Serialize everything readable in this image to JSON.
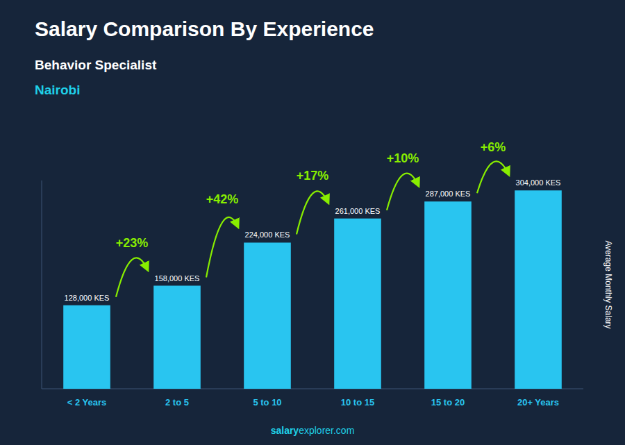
{
  "chart_data": {
    "type": "bar",
    "title": "Salary Comparison By Experience",
    "subtitle": "Behavior Specialist",
    "city": "Nairobi",
    "y_label": "Average Monthly Salary",
    "footer": [
      "salary",
      "explorer.com"
    ],
    "categories": [
      "< 2 Years",
      "2 to 5",
      "5 to 10",
      "10 to 15",
      "15 to 20",
      "20+ Years"
    ],
    "values": [
      128000,
      158000,
      224000,
      261000,
      287000,
      304000
    ],
    "value_labels": [
      "128,000 KES",
      "158,000 KES",
      "224,000 KES",
      "261,000 KES",
      "287,000 KES",
      "304,000 KES"
    ],
    "data_labels": true,
    "annotations": [
      "+23%",
      "+42%",
      "+17%",
      "+10%",
      "+6%"
    ],
    "color": "#29c5f0",
    "ylim": [
      0,
      319200
    ],
    "tick_labels": "x"
  }
}
